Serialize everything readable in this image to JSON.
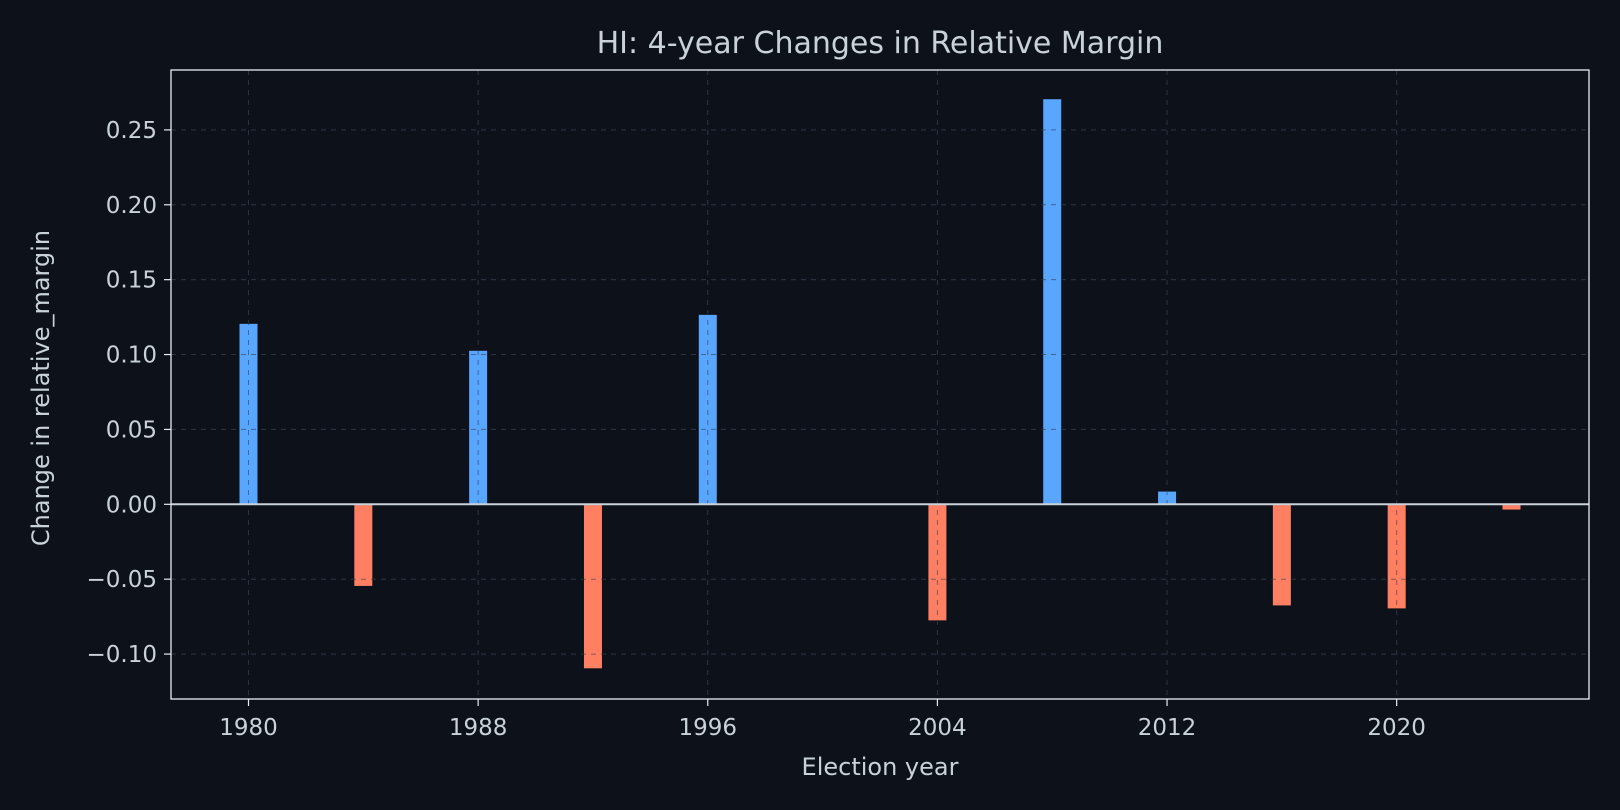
{
  "chart_data": {
    "type": "bar",
    "title": "HI: 4-year Changes in Relative Margin",
    "xlabel": "Election year",
    "ylabel": "Change in relative_margin",
    "x": [
      1980,
      1984,
      1988,
      1992,
      1996,
      2000,
      2004,
      2008,
      2012,
      2016,
      2020,
      2024
    ],
    "values": [
      0.121,
      -0.055,
      0.103,
      -0.11,
      0.127,
      0.001,
      -0.078,
      0.271,
      0.009,
      -0.068,
      -0.07,
      -0.004
    ],
    "xlim": [
      1977.3,
      2026.7
    ],
    "ylim": [
      -0.13,
      0.29
    ],
    "xticks": [
      1980,
      1988,
      1996,
      2004,
      2012,
      2020
    ],
    "xtick_labels": [
      "1980",
      "1988",
      "1996",
      "2004",
      "2012",
      "2020"
    ],
    "yticks": [
      -0.1,
      -0.05,
      0.0,
      0.05,
      0.1,
      0.15,
      0.2,
      0.25
    ],
    "ytick_labels": [
      "−0.10",
      "−0.05",
      "0.00",
      "0.05",
      "0.10",
      "0.15",
      "0.20",
      "0.25"
    ],
    "grid": true,
    "legend": "none",
    "colors": {
      "positive": "#58a6ff",
      "negative": "#ff7f63",
      "background": "#0d111a",
      "text": "#c9d1d9",
      "axes": "#e6edf3",
      "zero_line": "#c9d1d9",
      "grid": "#2b3340"
    }
  }
}
